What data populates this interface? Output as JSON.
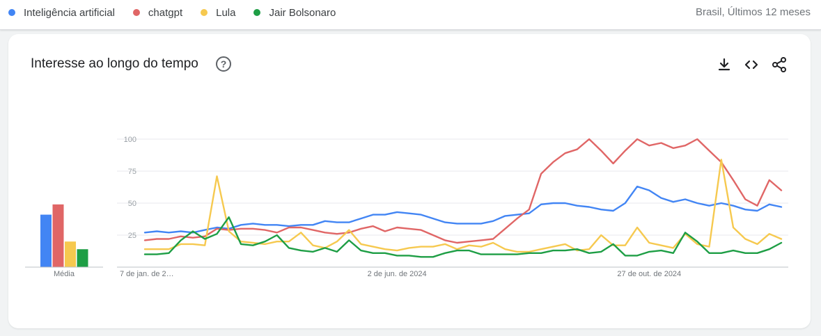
{
  "header": {
    "legend": [
      {
        "label": "Inteligência artificial",
        "color": "#4285f4"
      },
      {
        "label": "chatgpt",
        "color": "#e06666"
      },
      {
        "label": "Lula",
        "color": "#f6c94f"
      },
      {
        "label": "Jair Bolsonaro",
        "color": "#1e9e45"
      }
    ],
    "region": "Brasil, Últimos 12 meses"
  },
  "card": {
    "title": "Interesse ao longo do tempo",
    "help_icon": "help-icon",
    "tools": [
      "download-icon",
      "embed-code-icon",
      "share-icon"
    ]
  },
  "chart_data": {
    "type": "line",
    "ylim": [
      0,
      100
    ],
    "y_ticks": [
      25,
      50,
      75,
      100
    ],
    "x_tick_labels": [
      {
        "index": 0,
        "label": "7 de jan. de 2…"
      },
      {
        "index": 21,
        "label": "2 de jun. de 2024"
      },
      {
        "index": 42,
        "label": "27 de out. de 2024"
      }
    ],
    "grid": true,
    "series": [
      {
        "name": "Inteligência artificial",
        "color": "#4285f4",
        "values": [
          27,
          28,
          27,
          28,
          27,
          29,
          31,
          30,
          33,
          34,
          33,
          33,
          32,
          33,
          33,
          36,
          35,
          35,
          38,
          41,
          41,
          43,
          42,
          41,
          38,
          35,
          34,
          34,
          34,
          36,
          40,
          41,
          42,
          49,
          50,
          50,
          48,
          47,
          45,
          44,
          50,
          63,
          60,
          54,
          51,
          53,
          50,
          48,
          50,
          48,
          45,
          44,
          49,
          47
        ]
      },
      {
        "name": "chatgpt",
        "color": "#e06666",
        "values": [
          21,
          22,
          22,
          24,
          23,
          24,
          30,
          29,
          30,
          30,
          29,
          27,
          31,
          31,
          29,
          27,
          26,
          27,
          30,
          32,
          28,
          31,
          30,
          29,
          25,
          21,
          19,
          20,
          21,
          22,
          30,
          38,
          45,
          73,
          82,
          89,
          92,
          100,
          91,
          81,
          91,
          100,
          95,
          97,
          93,
          95,
          100,
          91,
          82,
          68,
          53,
          48,
          68,
          60
        ]
      },
      {
        "name": "Lula",
        "color": "#f6c94f",
        "values": [
          14,
          14,
          14,
          18,
          18,
          17,
          71,
          28,
          20,
          19,
          18,
          20,
          20,
          27,
          17,
          15,
          20,
          29,
          18,
          16,
          14,
          13,
          15,
          16,
          16,
          18,
          14,
          17,
          16,
          19,
          14,
          12,
          12,
          14,
          16,
          18,
          13,
          14,
          25,
          17,
          17,
          31,
          19,
          17,
          15,
          26,
          18,
          16,
          84,
          31,
          22,
          18,
          26,
          22
        ]
      },
      {
        "name": "Jair Bolsonaro",
        "color": "#1e9e45",
        "values": [
          10,
          10,
          11,
          21,
          28,
          22,
          26,
          39,
          18,
          17,
          20,
          25,
          15,
          13,
          12,
          15,
          12,
          21,
          13,
          11,
          11,
          9,
          9,
          8,
          8,
          11,
          13,
          13,
          10,
          10,
          10,
          10,
          11,
          11,
          13,
          13,
          14,
          11,
          12,
          18,
          9,
          9,
          12,
          13,
          11,
          27,
          20,
          11,
          11,
          13,
          11,
          11,
          14,
          19
        ]
      }
    ],
    "average_bars": {
      "label": "Média",
      "values": [
        41,
        49,
        20,
        14
      ]
    }
  }
}
